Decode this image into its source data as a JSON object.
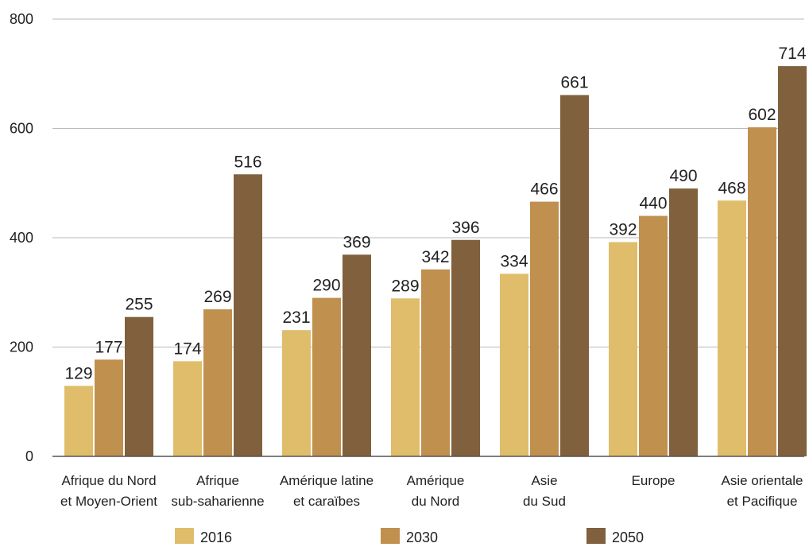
{
  "chart_data": {
    "type": "bar",
    "categories": [
      [
        "Afrique du Nord",
        "et Moyen-Orient"
      ],
      [
        "Afrique",
        "sub-saharienne"
      ],
      [
        "Amérique latine",
        "et caraïbes"
      ],
      [
        "Amérique",
        "du Nord"
      ],
      [
        "Asie",
        "du Sud"
      ],
      [
        "Europe"
      ],
      [
        "Asie orientale",
        "et Pacifique"
      ]
    ],
    "series": [
      {
        "name": "2016",
        "color": "#dfbd6a",
        "values": [
          129,
          174,
          231,
          289,
          334,
          392,
          468
        ]
      },
      {
        "name": "2030",
        "color": "#c0904f",
        "values": [
          177,
          269,
          290,
          342,
          466,
          440,
          602
        ]
      },
      {
        "name": "2050",
        "color": "#80603d",
        "values": [
          255,
          516,
          369,
          396,
          661,
          490,
          714
        ]
      }
    ],
    "ylim": [
      0,
      800
    ],
    "yticks": [
      0,
      200,
      400,
      600,
      800
    ],
    "grid": true,
    "legend_position": "bottom",
    "title": "",
    "xlabel": "",
    "ylabel": ""
  }
}
